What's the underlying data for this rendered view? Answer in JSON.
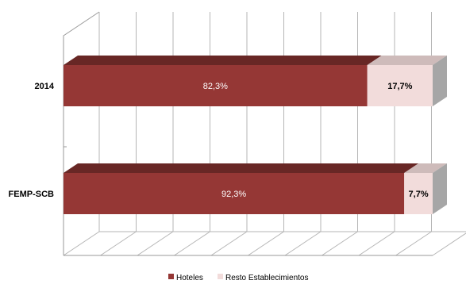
{
  "chart_data": {
    "type": "bar",
    "orientation": "horizontal",
    "stacked": true,
    "percent_stacked": true,
    "three_d": true,
    "categories": [
      "2014",
      "FEMP-SCB"
    ],
    "series": [
      {
        "name": "Hoteles",
        "values": [
          82.3,
          92.3
        ],
        "labels": [
          "82,3%",
          "92,3%"
        ],
        "color": "#953735"
      },
      {
        "name": "Resto  Establecimientos",
        "values": [
          17.7,
          7.7
        ],
        "labels": [
          "17,7%",
          "7,7%"
        ],
        "color": "#f2dcdb"
      }
    ],
    "xlim": [
      0,
      100
    ],
    "grid": true,
    "legend_position": "bottom"
  }
}
